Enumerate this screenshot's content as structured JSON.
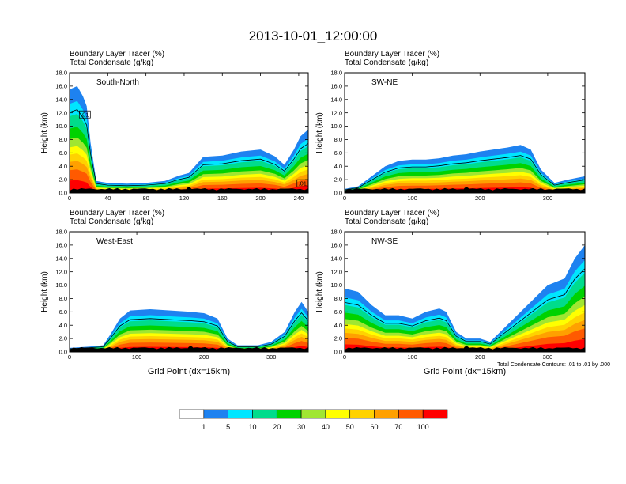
{
  "title": "2013-10-01_12:00:00",
  "common_labels": {
    "tracer": "Boundary Layer Tracer   (%)",
    "condensate": "Total Condensate   (g/kg)",
    "ylabel": "Height (km)",
    "xlabel": "Grid Point (dx=15km)"
  },
  "footnote": "Total Condensate Contours: .01 to .01 by .000",
  "colorbar": {
    "ticks": [
      "1",
      "5",
      "10",
      "20",
      "30",
      "40",
      "50",
      "60",
      "70",
      "100"
    ],
    "colors": [
      "#ffffff",
      "#1e82f0",
      "#00e6ff",
      "#00dc8c",
      "#00d200",
      "#a0e632",
      "#ffff00",
      "#ffd200",
      "#ffa000",
      "#ff5a00",
      "#ff0000"
    ]
  },
  "chart_data": [
    {
      "type": "heatmap",
      "panel_label": "South-North",
      "xticks": [
        0,
        40,
        80,
        120,
        160,
        200,
        240
      ],
      "xlim": [
        0,
        250
      ],
      "yticks": [
        "0.0",
        "2.0",
        "4.0",
        "6.0",
        "8.0",
        "10.0",
        "12.0",
        "14.0",
        "16.0",
        "18.0"
      ],
      "ylim": [
        0,
        18
      ],
      "marker_x": 125,
      "contour_labels": [
        {
          "text": ".01",
          "x": 16,
          "y": 11.7
        },
        {
          "text": ".01",
          "x": 244,
          "y": 1.4
        }
      ],
      "profile": [
        {
          "x": 0,
          "h": 15.5
        },
        {
          "x": 8,
          "h": 16.0
        },
        {
          "x": 14,
          "h": 14.5
        },
        {
          "x": 18,
          "h": 13.0
        },
        {
          "x": 22,
          "h": 7.5
        },
        {
          "x": 28,
          "h": 1.8
        },
        {
          "x": 40,
          "h": 1.5
        },
        {
          "x": 60,
          "h": 1.4
        },
        {
          "x": 80,
          "h": 1.5
        },
        {
          "x": 100,
          "h": 1.8
        },
        {
          "x": 115,
          "h": 2.6
        },
        {
          "x": 125,
          "h": 3.0
        },
        {
          "x": 140,
          "h": 5.4
        },
        {
          "x": 160,
          "h": 5.6
        },
        {
          "x": 180,
          "h": 6.2
        },
        {
          "x": 200,
          "h": 6.5
        },
        {
          "x": 215,
          "h": 5.5
        },
        {
          "x": 225,
          "h": 4.2
        },
        {
          "x": 235,
          "h": 6.5
        },
        {
          "x": 242,
          "h": 8.5
        },
        {
          "x": 250,
          "h": 9.5
        }
      ]
    },
    {
      "type": "heatmap",
      "panel_label": "SW-NE",
      "xticks": [
        0,
        100,
        200,
        300
      ],
      "xlim": [
        0,
        355
      ],
      "yticks": [
        "0.0",
        "2.0",
        "4.0",
        "6.0",
        "8.0",
        "10.0",
        "12.0",
        "14.0",
        "16.0",
        "18.0"
      ],
      "ylim": [
        0,
        18
      ],
      "marker_x": 180,
      "contour_labels": [],
      "profile": [
        {
          "x": 0,
          "h": 0.6
        },
        {
          "x": 20,
          "h": 1.0
        },
        {
          "x": 40,
          "h": 2.5
        },
        {
          "x": 60,
          "h": 4.0
        },
        {
          "x": 80,
          "h": 4.8
        },
        {
          "x": 100,
          "h": 5.0
        },
        {
          "x": 120,
          "h": 5.0
        },
        {
          "x": 140,
          "h": 5.2
        },
        {
          "x": 160,
          "h": 5.6
        },
        {
          "x": 180,
          "h": 5.8
        },
        {
          "x": 200,
          "h": 6.2
        },
        {
          "x": 220,
          "h": 6.5
        },
        {
          "x": 240,
          "h": 6.8
        },
        {
          "x": 260,
          "h": 7.2
        },
        {
          "x": 275,
          "h": 6.5
        },
        {
          "x": 290,
          "h": 3.5
        },
        {
          "x": 310,
          "h": 1.5
        },
        {
          "x": 330,
          "h": 2.0
        },
        {
          "x": 355,
          "h": 2.5
        }
      ]
    },
    {
      "type": "heatmap",
      "panel_label": "West-East",
      "xticks": [
        0,
        100,
        200,
        300
      ],
      "xlim": [
        0,
        355
      ],
      "yticks": [
        "0.0",
        "2.0",
        "4.0",
        "6.0",
        "8.0",
        "10.0",
        "12.0",
        "14.0",
        "16.0",
        "18.0"
      ],
      "ylim": [
        0,
        18
      ],
      "marker_x": 180,
      "contour_labels": [],
      "profile": [
        {
          "x": 0,
          "h": 0.6
        },
        {
          "x": 30,
          "h": 0.8
        },
        {
          "x": 50,
          "h": 1.0
        },
        {
          "x": 60,
          "h": 2.5
        },
        {
          "x": 75,
          "h": 5.0
        },
        {
          "x": 90,
          "h": 6.2
        },
        {
          "x": 120,
          "h": 6.4
        },
        {
          "x": 150,
          "h": 6.2
        },
        {
          "x": 180,
          "h": 6.0
        },
        {
          "x": 200,
          "h": 5.8
        },
        {
          "x": 220,
          "h": 5.0
        },
        {
          "x": 235,
          "h": 2.0
        },
        {
          "x": 250,
          "h": 1.0
        },
        {
          "x": 280,
          "h": 1.0
        },
        {
          "x": 300,
          "h": 1.5
        },
        {
          "x": 320,
          "h": 3.0
        },
        {
          "x": 335,
          "h": 6.0
        },
        {
          "x": 345,
          "h": 7.5
        },
        {
          "x": 355,
          "h": 6.0
        }
      ]
    },
    {
      "type": "heatmap",
      "panel_label": "NW-SE",
      "xticks": [
        0,
        100,
        200,
        300
      ],
      "xlim": [
        0,
        355
      ],
      "yticks": [
        "0.0",
        "2.0",
        "4.0",
        "6.0",
        "8.0",
        "10.0",
        "12.0",
        "14.0",
        "16.0",
        "18.0"
      ],
      "ylim": [
        0,
        18
      ],
      "marker_x": 180,
      "contour_labels": [],
      "profile": [
        {
          "x": 0,
          "h": 9.5
        },
        {
          "x": 20,
          "h": 9.0
        },
        {
          "x": 40,
          "h": 7.0
        },
        {
          "x": 60,
          "h": 5.5
        },
        {
          "x": 80,
          "h": 5.5
        },
        {
          "x": 100,
          "h": 5.0
        },
        {
          "x": 120,
          "h": 6.0
        },
        {
          "x": 140,
          "h": 6.5
        },
        {
          "x": 150,
          "h": 6.0
        },
        {
          "x": 165,
          "h": 3.0
        },
        {
          "x": 180,
          "h": 2.0
        },
        {
          "x": 200,
          "h": 2.0
        },
        {
          "x": 215,
          "h": 1.5
        },
        {
          "x": 250,
          "h": 5.0
        },
        {
          "x": 270,
          "h": 7.0
        },
        {
          "x": 300,
          "h": 10.0
        },
        {
          "x": 325,
          "h": 11.0
        },
        {
          "x": 340,
          "h": 14.0
        },
        {
          "x": 355,
          "h": 16.0
        }
      ]
    }
  ]
}
